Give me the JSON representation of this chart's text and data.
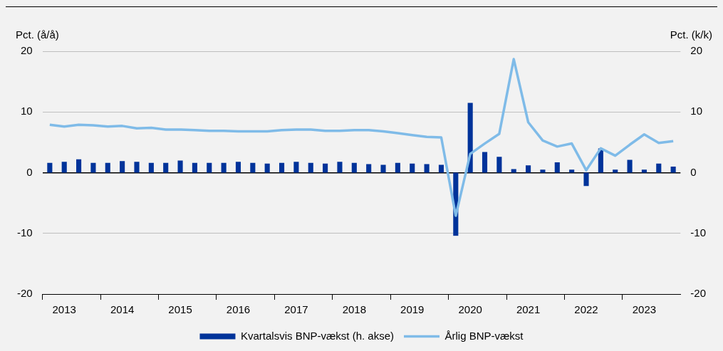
{
  "chart_data": {
    "type": "bar",
    "categories": [
      null,
      "2013",
      null,
      null,
      null,
      "2014",
      null,
      null,
      null,
      "2015",
      null,
      null,
      null,
      "2016",
      null,
      null,
      null,
      "2017",
      null,
      null,
      null,
      "2018",
      null,
      null,
      null,
      "2019",
      null,
      null,
      null,
      "2020",
      null,
      null,
      null,
      "2021",
      null,
      null,
      null,
      "2022",
      null,
      null,
      null,
      "2023",
      null,
      null
    ],
    "series": [
      {
        "name": "Kvartalsvis BNP-vækst (h. akse)",
        "axis": "y2",
        "color": "#00339a",
        "values": [
          1.6,
          1.8,
          2.2,
          1.6,
          1.6,
          1.9,
          1.8,
          1.6,
          1.6,
          2.0,
          1.6,
          1.6,
          1.6,
          1.8,
          1.6,
          1.5,
          1.6,
          1.8,
          1.6,
          1.5,
          1.8,
          1.6,
          1.4,
          1.3,
          1.6,
          1.5,
          1.4,
          1.3,
          -10.4,
          11.5,
          3.4,
          2.6,
          0.6,
          1.2,
          0.5,
          1.7,
          0.5,
          -2.2,
          4.0,
          0.5,
          2.1,
          0.5,
          1.5,
          1.0
        ]
      },
      {
        "name": "Årlig BNP-vækst",
        "type": "line",
        "axis": "y",
        "color": "#7fbbe8",
        "values": [
          7.9,
          7.6,
          7.9,
          7.8,
          7.6,
          7.7,
          7.3,
          7.4,
          7.1,
          7.1,
          7.0,
          6.9,
          6.9,
          6.8,
          6.8,
          6.8,
          7.0,
          7.1,
          7.1,
          6.9,
          6.9,
          7.0,
          7.0,
          6.8,
          6.5,
          6.2,
          5.9,
          5.8,
          -7.1,
          3.1,
          4.8,
          6.4,
          18.7,
          8.3,
          5.3,
          4.3,
          4.8,
          0.4,
          4.0,
          2.8,
          4.6,
          6.3,
          4.9,
          5.2
        ]
      }
    ],
    "ylabel": "Pct. (å/å)",
    "y2label": "Pct. (k/k)",
    "ylim": [
      -20,
      20
    ],
    "yticks": [
      -20,
      -10,
      0,
      10,
      20
    ],
    "y2lim": [
      -20,
      20
    ],
    "y2ticks": [
      -20,
      -10,
      0,
      10,
      20
    ],
    "grid": "y",
    "legend": "bottom"
  }
}
